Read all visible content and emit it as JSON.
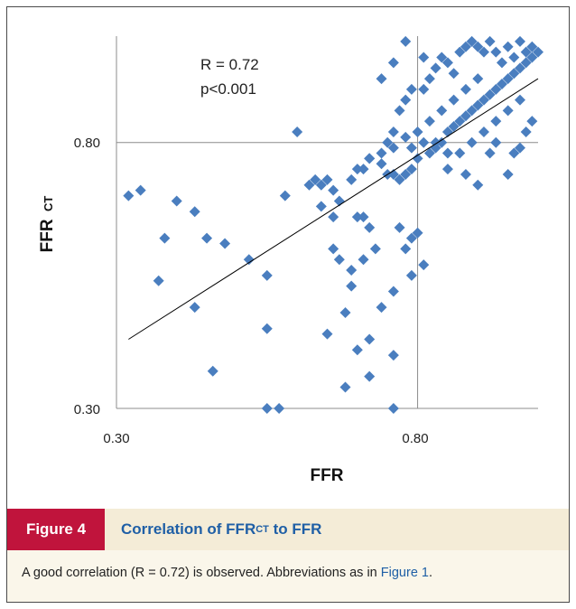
{
  "chart_data": {
    "type": "scatter",
    "title": "",
    "xlabel": "FFR",
    "ylabel_main": "FFR",
    "ylabel_sub": "CT",
    "xlim": [
      0.3,
      1.0
    ],
    "ylim": [
      0.3,
      1.0
    ],
    "x_ticks": [
      "0.30",
      "0.80"
    ],
    "y_ticks": [
      "0.80",
      "0.30"
    ],
    "reference_lines": {
      "x": 0.8,
      "y": 0.8
    },
    "annotation": [
      "R = 0.72",
      "p<0.001"
    ],
    "marker_color": "#4a7ebf",
    "fit_line": {
      "x1": 0.32,
      "y1": 0.43,
      "x2": 1.0,
      "y2": 0.92
    },
    "points": [
      [
        0.32,
        0.7
      ],
      [
        0.34,
        0.71
      ],
      [
        0.4,
        0.69
      ],
      [
        0.43,
        0.67
      ],
      [
        0.38,
        0.62
      ],
      [
        0.45,
        0.62
      ],
      [
        0.48,
        0.61
      ],
      [
        0.37,
        0.54
      ],
      [
        0.52,
        0.58
      ],
      [
        0.55,
        0.55
      ],
      [
        0.55,
        0.45
      ],
      [
        0.43,
        0.49
      ],
      [
        0.46,
        0.37
      ],
      [
        0.55,
        0.3
      ],
      [
        0.57,
        0.3
      ],
      [
        0.58,
        0.7
      ],
      [
        0.62,
        0.72
      ],
      [
        0.63,
        0.73
      ],
      [
        0.64,
        0.72
      ],
      [
        0.65,
        0.73
      ],
      [
        0.66,
        0.71
      ],
      [
        0.64,
        0.68
      ],
      [
        0.66,
        0.66
      ],
      [
        0.67,
        0.69
      ],
      [
        0.69,
        0.73
      ],
      [
        0.7,
        0.66
      ],
      [
        0.71,
        0.66
      ],
      [
        0.72,
        0.64
      ],
      [
        0.71,
        0.75
      ],
      [
        0.72,
        0.77
      ],
      [
        0.74,
        0.76
      ],
      [
        0.75,
        0.74
      ],
      [
        0.76,
        0.74
      ],
      [
        0.77,
        0.73
      ],
      [
        0.78,
        0.74
      ],
      [
        0.79,
        0.75
      ],
      [
        0.8,
        0.77
      ],
      [
        0.82,
        0.78
      ],
      [
        0.83,
        0.79
      ],
      [
        0.84,
        0.8
      ],
      [
        0.85,
        0.82
      ],
      [
        0.86,
        0.83
      ],
      [
        0.87,
        0.84
      ],
      [
        0.88,
        0.85
      ],
      [
        0.89,
        0.86
      ],
      [
        0.9,
        0.87
      ],
      [
        0.91,
        0.88
      ],
      [
        0.92,
        0.89
      ],
      [
        0.93,
        0.9
      ],
      [
        0.94,
        0.91
      ],
      [
        0.95,
        0.92
      ],
      [
        0.96,
        0.93
      ],
      [
        0.97,
        0.94
      ],
      [
        0.98,
        0.95
      ],
      [
        0.99,
        0.96
      ],
      [
        1.0,
        0.97
      ],
      [
        0.75,
        0.8
      ],
      [
        0.76,
        0.82
      ],
      [
        0.77,
        0.86
      ],
      [
        0.78,
        0.88
      ],
      [
        0.79,
        0.9
      ],
      [
        0.81,
        0.9
      ],
      [
        0.82,
        0.92
      ],
      [
        0.83,
        0.94
      ],
      [
        0.84,
        0.96
      ],
      [
        0.85,
        0.95
      ],
      [
        0.86,
        0.93
      ],
      [
        0.87,
        0.97
      ],
      [
        0.88,
        0.98
      ],
      [
        0.89,
        0.99
      ],
      [
        0.9,
        0.98
      ],
      [
        0.91,
        0.97
      ],
      [
        0.92,
        0.99
      ],
      [
        0.93,
        0.97
      ],
      [
        0.94,
        0.95
      ],
      [
        0.95,
        0.98
      ],
      [
        0.96,
        0.96
      ],
      [
        0.97,
        0.99
      ],
      [
        0.98,
        0.97
      ],
      [
        0.99,
        0.98
      ],
      [
        0.9,
        0.92
      ],
      [
        0.88,
        0.9
      ],
      [
        0.86,
        0.88
      ],
      [
        0.84,
        0.86
      ],
      [
        0.82,
        0.84
      ],
      [
        0.8,
        0.82
      ],
      [
        0.78,
        0.81
      ],
      [
        0.76,
        0.79
      ],
      [
        0.74,
        0.78
      ],
      [
        0.72,
        0.77
      ],
      [
        0.7,
        0.75
      ],
      [
        0.6,
        0.82
      ],
      [
        0.74,
        0.92
      ],
      [
        0.76,
        0.95
      ],
      [
        0.78,
        0.99
      ],
      [
        0.81,
        0.96
      ],
      [
        0.85,
        0.75
      ],
      [
        0.88,
        0.74
      ],
      [
        0.9,
        0.72
      ],
      [
        0.92,
        0.78
      ],
      [
        0.93,
        0.8
      ],
      [
        0.95,
        0.74
      ],
      [
        0.96,
        0.78
      ],
      [
        0.97,
        0.79
      ],
      [
        0.98,
        0.82
      ],
      [
        0.99,
        0.84
      ],
      [
        0.97,
        0.88
      ],
      [
        0.95,
        0.86
      ],
      [
        0.93,
        0.84
      ],
      [
        0.91,
        0.82
      ],
      [
        0.89,
        0.8
      ],
      [
        0.87,
        0.78
      ],
      [
        0.85,
        0.78
      ],
      [
        0.83,
        0.8
      ],
      [
        0.81,
        0.8
      ],
      [
        0.79,
        0.79
      ],
      [
        0.77,
        0.64
      ],
      [
        0.78,
        0.6
      ],
      [
        0.79,
        0.62
      ],
      [
        0.8,
        0.63
      ],
      [
        0.81,
        0.57
      ],
      [
        0.79,
        0.55
      ],
      [
        0.76,
        0.52
      ],
      [
        0.74,
        0.49
      ],
      [
        0.72,
        0.43
      ],
      [
        0.68,
        0.48
      ],
      [
        0.69,
        0.53
      ],
      [
        0.65,
        0.44
      ],
      [
        0.7,
        0.41
      ],
      [
        0.76,
        0.4
      ],
      [
        0.72,
        0.36
      ],
      [
        0.68,
        0.34
      ],
      [
        0.76,
        0.3
      ],
      [
        0.66,
        0.6
      ],
      [
        0.67,
        0.58
      ],
      [
        0.69,
        0.56
      ],
      [
        0.71,
        0.58
      ],
      [
        0.73,
        0.6
      ]
    ]
  },
  "caption": {
    "figure_label": "Figure 4",
    "title_prefix": "Correlation of FFR",
    "title_sub": "CT",
    "title_suffix": " to FFR",
    "body_text": "A good correlation (R = 0.72) is observed. Abbreviations as in ",
    "body_link": "Figure 1",
    "body_end": "."
  }
}
